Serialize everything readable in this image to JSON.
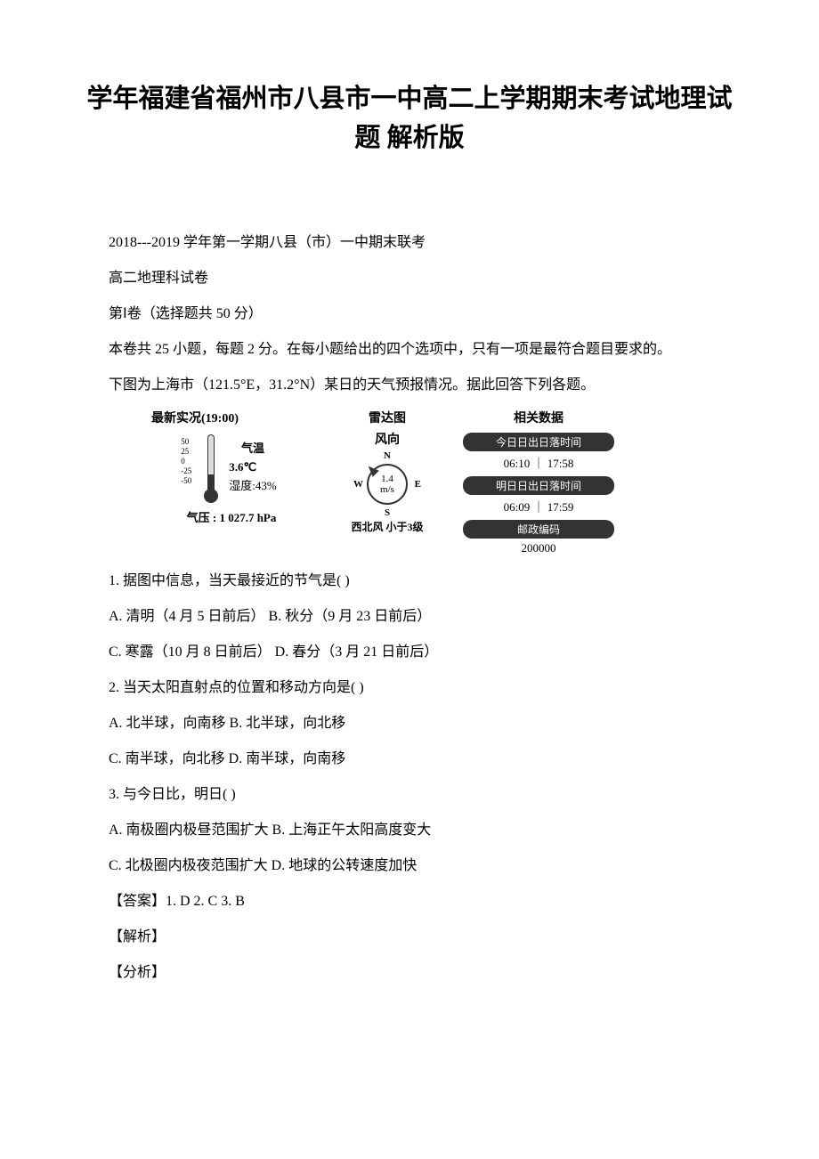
{
  "doc": {
    "title": "学年福建省福州市八县市一中高二上学期期末考试地理试题 解析版",
    "subtitle1": "2018---2019 学年第一学期八县（市）一中期末联考",
    "subtitle2": "高二地理科试卷",
    "section_header": "第Ⅰ卷（选择题共 50 分）",
    "instructions": "本卷共 25 小题，每题 2 分。在每小题给出的四个选项中，只有一项是最符合题目要求的。",
    "context": "下图为上海市（121.5°E，31.2°N）某日的天气预报情况。据此回答下列各题。"
  },
  "weather": {
    "col1_header": "最新实况(19:00)",
    "col2_header": "雷达图",
    "col3_header": "相关数据",
    "temp_label": "气温",
    "temp_value": "3.6℃",
    "humidity": "湿度:43%",
    "pressure": "气压 : 1 027.7 hPa",
    "wind_label": "风向",
    "wind_speed": "1.4",
    "wind_unit": "m/s",
    "wind_text": "西北风 小于3级",
    "compass_n": "N",
    "compass_s": "S",
    "compass_w": "W",
    "compass_e": "E",
    "thermo_scale": [
      "50",
      "25",
      "0",
      "-25",
      "-50"
    ],
    "pills": {
      "today_sun": "今日日出日落时间",
      "today_times": "06:10 ｜ 17:58",
      "tomorrow_sun": "明日日出日落时间",
      "tomorrow_times": "06:09 ｜ 17:59",
      "postal_label": "邮政编码",
      "postal_value": "200000"
    }
  },
  "questions": {
    "q1": "1. 据图中信息，当天最接近的节气是( )",
    "q1_ab": "A. 清明（4 月 5 日前后） B. 秋分（9 月 23 日前后）",
    "q1_cd": "C. 寒露（10 月 8 日前后） D. 春分（3 月 21 日前后）",
    "q2": "2. 当天太阳直射点的位置和移动方向是( )",
    "q2_ab": "A. 北半球，向南移 B. 北半球，向北移",
    "q2_cd": "C. 南半球，向北移 D. 南半球，向南移",
    "q3": "3. 与今日比，明日( )",
    "q3_ab": "A. 南极圈内极昼范围扩大 B. 上海正午太阳高度变大",
    "q3_cd": "C. 北极圈内极夜范围扩大 D. 地球的公转速度加快"
  },
  "answers": {
    "answer_line": "【答案】1. D 2. C 3. B",
    "analysis1": "【解析】",
    "analysis2": "【分析】"
  },
  "colors": {
    "text": "#000000",
    "background": "#ffffff",
    "pill_bg": "#333333",
    "pill_text": "#ffffff"
  }
}
